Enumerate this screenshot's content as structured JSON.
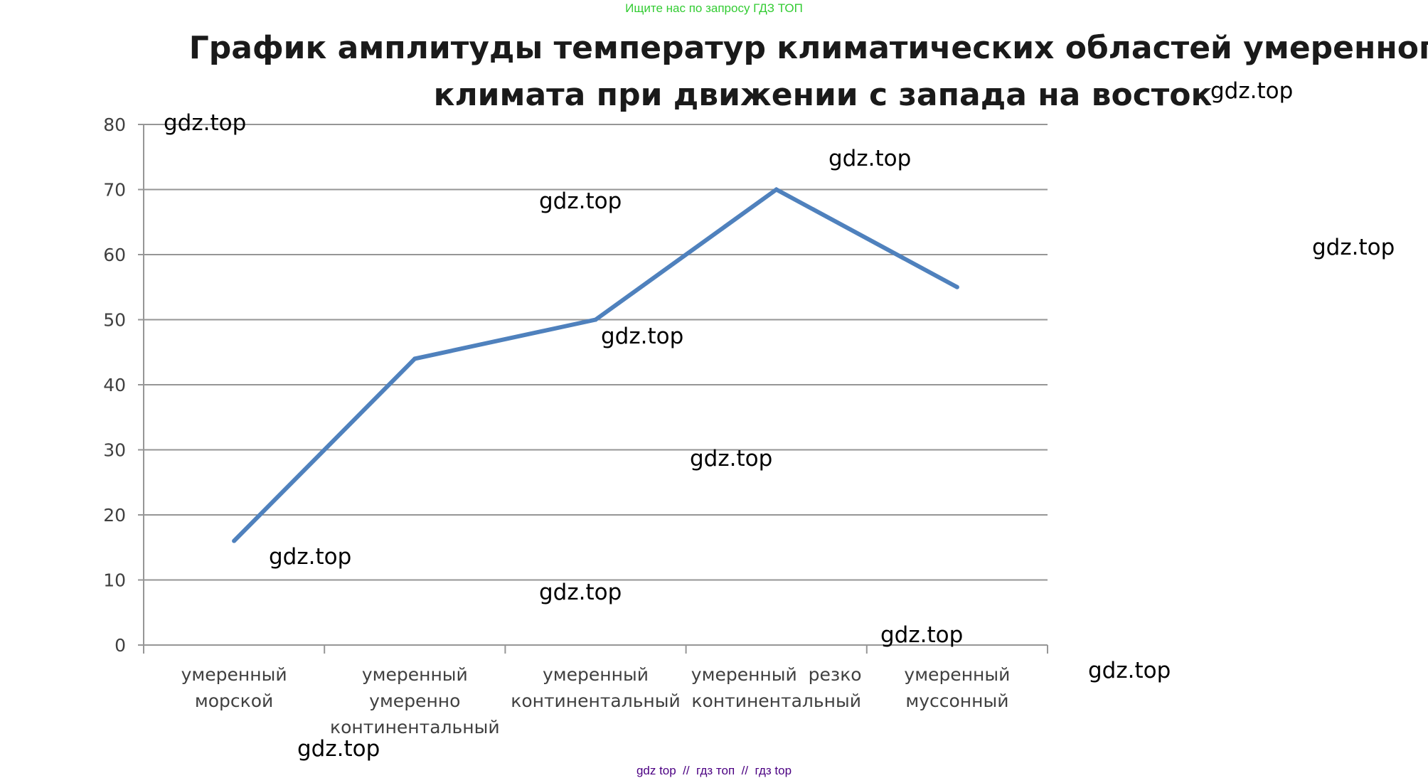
{
  "banner_top": "Ищите нас по запросу ГДЗ ТОП",
  "banner_bottom": "gdz top  //  гдз топ  //  гдз top",
  "watermark_text": "gdz.top",
  "colors": {
    "line": "#4f81bd",
    "grid": "#969696",
    "axis": "#969696",
    "tick_text": "#404040",
    "title": "#1a1a1a",
    "banner_top": "#33cc33",
    "banner_bottom": "#4b0082"
  },
  "chart_data": {
    "type": "line",
    "title_lines": [
      "График амплитуды температур климатических областей умеренного",
      "климата при движении с запада на восток"
    ],
    "xlabel": "",
    "ylabel": "",
    "ylim": [
      0,
      80
    ],
    "yticks": [
      "0",
      "10",
      "20",
      "30",
      "40",
      "50",
      "60",
      "70",
      "80"
    ],
    "grid": true,
    "legend": "none",
    "categories": [
      [
        "умеренный",
        "морской"
      ],
      [
        "умеренный",
        "умеренно",
        "континентальный"
      ],
      [
        "умеренный",
        "континентальный"
      ],
      [
        "умеренный  резко",
        "континентальный"
      ],
      [
        "умеренный",
        "муссонный"
      ]
    ],
    "series": [
      {
        "values": [
          16,
          44,
          50,
          70,
          55
        ]
      }
    ]
  }
}
